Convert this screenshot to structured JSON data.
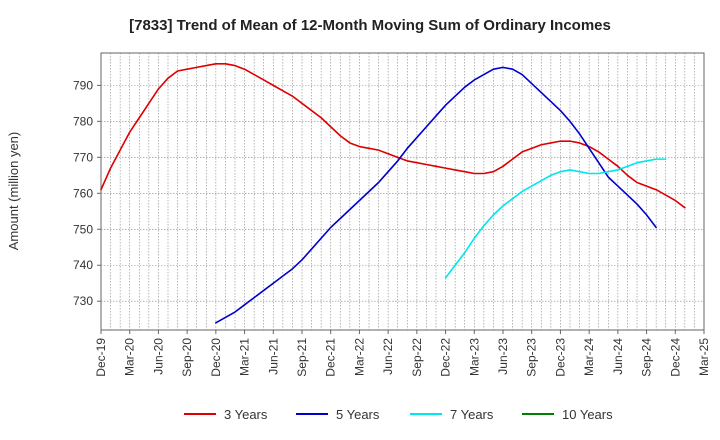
{
  "chart_data": {
    "type": "line",
    "title": "[7833]  Trend of Mean of 12-Month Moving Sum of Ordinary Incomes",
    "xlabel": "",
    "ylabel": "Amount (million yen)",
    "ylim": [
      722,
      799
    ],
    "yticks": [
      730,
      740,
      750,
      760,
      770,
      780,
      790
    ],
    "grid": true,
    "legend_position": "bottom",
    "x_tick_labels": [
      "Dec-19",
      "Mar-20",
      "Jun-20",
      "Sep-20",
      "Dec-20",
      "Mar-21",
      "Jun-21",
      "Sep-21",
      "Dec-21",
      "Mar-22",
      "Jun-22",
      "Sep-22",
      "Dec-22",
      "Mar-23",
      "Jun-23",
      "Sep-23",
      "Dec-23",
      "Mar-24",
      "Jun-24",
      "Sep-24",
      "Dec-24",
      "Mar-25"
    ],
    "series": [
      {
        "name": "3 Years",
        "color": "#dd0000",
        "start_index": 0,
        "values": [
          761,
          767,
          772,
          777,
          781,
          785,
          789,
          792,
          794,
          794.5,
          795,
          795.5,
          796,
          796,
          795.5,
          794.5,
          793,
          791.5,
          790,
          788.5,
          787,
          785,
          783,
          781,
          778.5,
          776,
          774,
          773,
          772.5,
          772,
          771,
          770,
          769,
          768.5,
          768,
          767.5,
          767,
          766.5,
          766,
          765.5,
          765.5,
          766,
          767.5,
          769.5,
          771.5,
          772.5,
          773.5,
          774,
          774.5,
          774.5,
          774,
          773,
          771.5,
          769.5,
          767.5,
          765,
          763,
          762,
          761,
          759.5,
          758,
          756
        ]
      },
      {
        "name": "5 Years",
        "color": "#0000cc",
        "start_index": 12,
        "values": [
          724,
          725.5,
          727,
          729,
          731,
          733,
          735,
          737,
          739,
          741.5,
          744.5,
          747.5,
          750.5,
          753,
          755.5,
          758,
          760.5,
          763,
          766,
          769,
          772.5,
          775.5,
          778.5,
          781.5,
          784.5,
          787,
          789.5,
          791.5,
          793,
          794.5,
          795,
          794.5,
          793,
          790.5,
          788,
          785.5,
          783,
          780,
          776.5,
          772.5,
          768.5,
          764.5,
          762,
          759.5,
          757,
          754,
          750.5
        ]
      },
      {
        "name": "7 Years",
        "color": "#00e5ee",
        "start_index": 36,
        "values": [
          736.5,
          740,
          743.5,
          747.5,
          751,
          754,
          756.5,
          758.5,
          760.5,
          762,
          763.5,
          765,
          766,
          766.5,
          766,
          765.5,
          765.5,
          766,
          766.5,
          767.5,
          768.5,
          769,
          769.5,
          769.5
        ]
      },
      {
        "name": "10 Years",
        "color": "#008000",
        "start_index": 0,
        "values": []
      }
    ]
  }
}
